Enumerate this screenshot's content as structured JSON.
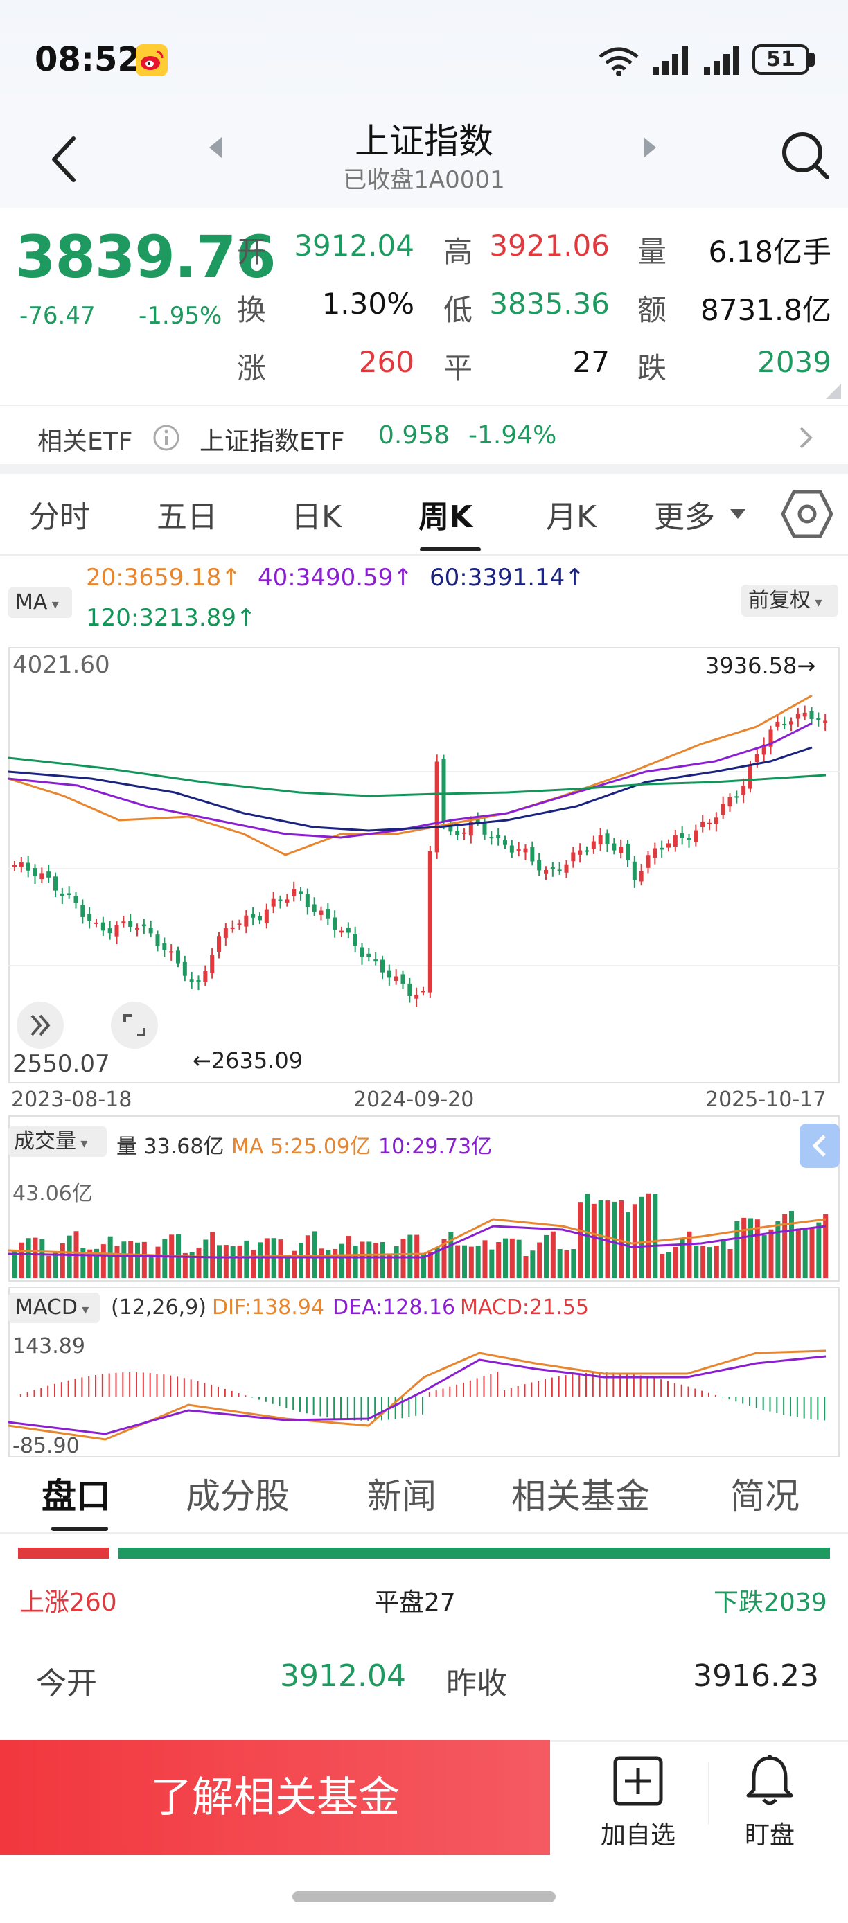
{
  "status": {
    "time": "08:52",
    "battery": "51",
    "weibo_icon": "weibo-icon"
  },
  "header": {
    "title": "上证指数",
    "subtitle": "已收盘1A0001"
  },
  "quote": {
    "price": "3839.76",
    "change": "-76.47",
    "change_pct": "-1.95%",
    "fields": [
      {
        "label": "开",
        "value": "3912.04",
        "color": "#1e9a60"
      },
      {
        "label": "高",
        "value": "3921.06",
        "color": "#e03a3e"
      },
      {
        "label": "量",
        "value": "6.18亿手",
        "color": "#111111"
      },
      {
        "label": "换",
        "value": "1.30%",
        "color": "#111111"
      },
      {
        "label": "低",
        "value": "3835.36",
        "color": "#1e9a60"
      },
      {
        "label": "额",
        "value": "8731.8亿",
        "color": "#111111"
      },
      {
        "label": "涨",
        "value": "260",
        "color": "#e03a3e"
      },
      {
        "label": "平",
        "value": "27",
        "color": "#111111"
      },
      {
        "label": "跌",
        "value": "2039",
        "color": "#1e9a60"
      }
    ]
  },
  "etf": {
    "label": "相关ETF",
    "name": "上证指数ETF",
    "price": "0.958",
    "change_pct": "-1.94%"
  },
  "period_tabs": [
    "分时",
    "五日",
    "日K",
    "周K",
    "月K",
    "更多"
  ],
  "active_period": "周K",
  "indicators": {
    "ma_button": "MA",
    "adjust_button": "前复权",
    "ma20": "20:3659.18↑",
    "ma40": "40:3490.59↑",
    "ma60": "60:3391.14↑",
    "ma120": "120:3213.89↑"
  },
  "kline": {
    "y_top_label": "4021.60",
    "y_bottom_label": "2550.07",
    "high_label": "3936.58→",
    "low_label": "←2635.09",
    "dates": [
      "2023-08-18",
      "2024-09-20",
      "2025-10-17"
    ]
  },
  "volume": {
    "button": "成交量",
    "vol_text": "量 33.68亿",
    "ma5_text": "MA 5:25.09亿",
    "ma10_text": "10:29.73亿",
    "y_top_label": "43.06亿"
  },
  "macd": {
    "button": "MACD",
    "params": "(12,26,9)",
    "dif_text": "DIF:138.94",
    "dea_text": "DEA:128.16",
    "macd_text": "MACD:21.55",
    "y_top_label": "143.89",
    "y_bottom_label": "-85.90"
  },
  "bottom_tabs": [
    "盘口",
    "成分股",
    "新闻",
    "相关基金",
    "简况"
  ],
  "breadth": {
    "up": "上涨260",
    "flat": "平盘27",
    "down": "下跌2039",
    "up_count": 260,
    "flat_count": 27,
    "down_count": 2039
  },
  "detail": {
    "open_label": "今开",
    "open_value": "3912.04",
    "prev_label": "昨收",
    "prev_value": "3916.23"
  },
  "cta": {
    "label": "了解相关基金"
  },
  "actions": {
    "watch": "加自选",
    "monitor": "盯盘"
  },
  "colors": {
    "up": "#e03a3e",
    "down": "#1e9a60",
    "ma20": "#e7862e",
    "ma40": "#8a1fd1",
    "ma60": "#1a237e",
    "ma120": "#13955a"
  }
}
